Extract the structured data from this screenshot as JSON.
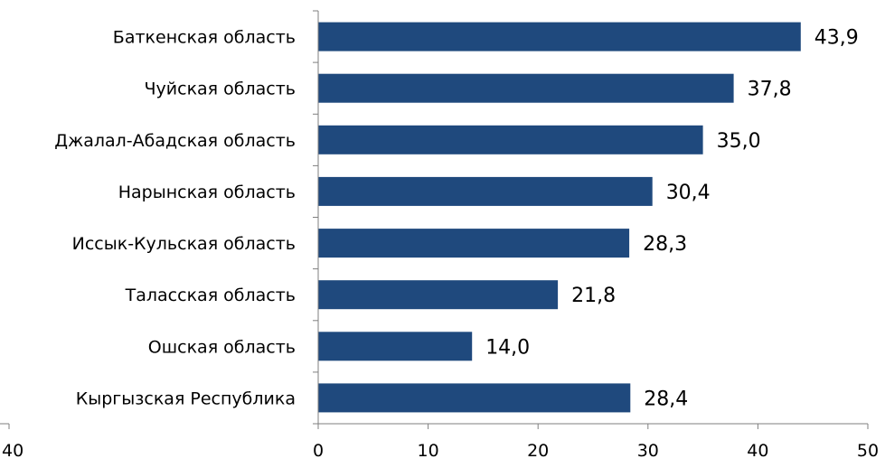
{
  "chart_data": {
    "type": "bar",
    "orientation": "horizontal",
    "categories": [
      "Баткенская область",
      "Чуйская область",
      "Джалал-Абадская область",
      "Нарынская область",
      "Иссык-Кульская область",
      "Таласская область",
      "Ошская область",
      "Кыргызская Республика"
    ],
    "values": [
      43.9,
      37.8,
      35.0,
      30.4,
      28.3,
      21.8,
      14.0,
      28.4
    ],
    "value_labels": [
      "43,9",
      "37,8",
      "35,0",
      "30,4",
      "28,3",
      "21,8",
      "14,0",
      "28,4"
    ],
    "xlim": [
      0,
      50
    ],
    "x_ticks": [
      0,
      10,
      20,
      30,
      40,
      50
    ],
    "x_tick_labels": [
      "0",
      "10",
      "20",
      "30",
      "40",
      "50"
    ],
    "left_axis_tick_label": "40",
    "title": "",
    "xlabel": "",
    "ylabel": "",
    "grid": false,
    "legend": false,
    "bar_color": "#1F497D",
    "axis_color": "#7F7F7F"
  }
}
